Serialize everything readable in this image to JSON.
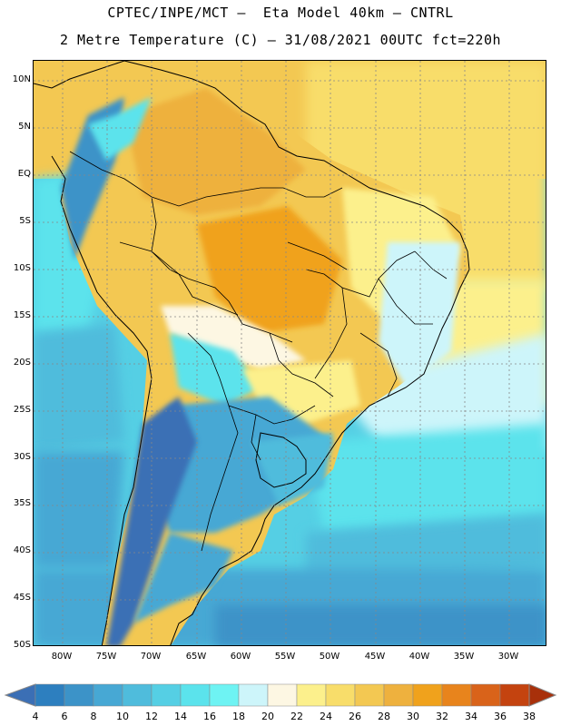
{
  "header": {
    "line1": "CPTEC/INPE/MCT –  Eta Model 40km – CNTRL",
    "line2": "2 Metre Temperature (C) – 31/08/2021 00UTC fct=220h"
  },
  "map": {
    "lat_labels": [
      "10N",
      "5N",
      "EQ",
      "5S",
      "10S",
      "15S",
      "20S",
      "25S",
      "30S",
      "35S",
      "40S",
      "45S",
      "50S"
    ],
    "lon_labels": [
      "80W",
      "75W",
      "70W",
      "65W",
      "60W",
      "55W",
      "50W",
      "45W",
      "40W",
      "35W",
      "30W"
    ],
    "lat_range": [
      -50,
      12
    ],
    "lon_range": [
      -83.5,
      -26
    ]
  },
  "colorbar": {
    "levels": [
      "4",
      "6",
      "8",
      "10",
      "12",
      "14",
      "16",
      "18",
      "20",
      "22",
      "24",
      "26",
      "28",
      "30",
      "32",
      "34",
      "36",
      "38"
    ],
    "colors": [
      "#3b6fb5",
      "#2d7fbf",
      "#3c93c8",
      "#47a8d4",
      "#4fbcdc",
      "#55cfe4",
      "#5be3ec",
      "#6ef3f3",
      "#cdf5fa",
      "#fdf7e3",
      "#fcf08c",
      "#f8dd6a",
      "#f3c852",
      "#eeb13e",
      "#f0a21c",
      "#e8841c",
      "#d9631a",
      "#c4430f",
      "#a8300a"
    ]
  }
}
